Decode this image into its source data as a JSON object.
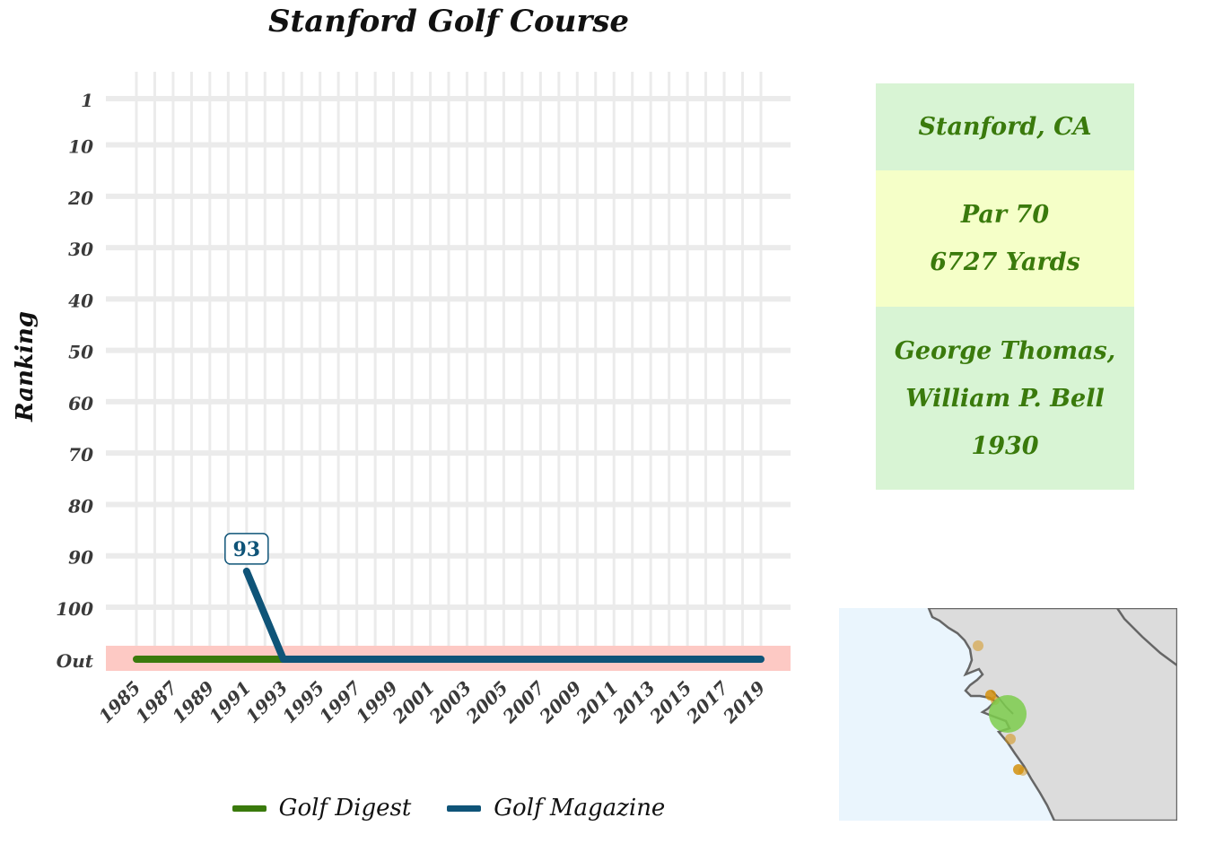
{
  "chart_data": {
    "type": "line",
    "title": "Stanford Golf Course",
    "ylabel": "Ranking",
    "xlabel": "",
    "x": [
      1985,
      1987,
      1989,
      1991,
      1993,
      1995,
      1997,
      1999,
      2001,
      2003,
      2005,
      2007,
      2009,
      2011,
      2013,
      2015,
      2017,
      2019
    ],
    "x_tick_labels": [
      "1985",
      "1987",
      "1989",
      "1991",
      "1993",
      "1995",
      "1997",
      "1999",
      "2001",
      "2003",
      "2005",
      "2007",
      "2009",
      "2011",
      "2013",
      "2015",
      "2017",
      "2019"
    ],
    "xlim": [
      1985,
      2019
    ],
    "y_tick_labels": [
      "1",
      "10",
      "20",
      "30",
      "40",
      "50",
      "60",
      "70",
      "80",
      "90",
      "100",
      "Out"
    ],
    "y_tick_values": [
      1,
      10,
      20,
      30,
      40,
      50,
      60,
      70,
      80,
      90,
      100,
      "Out"
    ],
    "y_reversed": true,
    "out_band_color": "#fdc9c4",
    "grid": true,
    "legend_position": "bottom",
    "series": [
      {
        "name": "Golf Digest",
        "color": "#3a7a0c",
        "points": [
          [
            1985,
            "Out"
          ],
          [
            1993,
            "Out"
          ]
        ]
      },
      {
        "name": "Golf Magazine",
        "color": "#0f5478",
        "points": [
          [
            1991,
            93
          ],
          [
            1993,
            "Out"
          ],
          [
            2019,
            "Out"
          ]
        ]
      }
    ],
    "annotations": [
      {
        "series": "Golf Magazine",
        "x": 1991,
        "y": 93,
        "text": "93"
      }
    ]
  },
  "info": {
    "location": "Stanford, CA",
    "par": "Par 70",
    "yards": "6727 Yards",
    "architect_line1": "George Thomas,",
    "architect_line2": "William P. Bell",
    "year": "1930"
  },
  "colors": {
    "text_green": "#3a7a0c",
    "location_bg": "#d8f4d4",
    "par_bg": "#f5ffc8",
    "map_water": "#eaf5fd",
    "map_land": "#dcdcdc",
    "map_highlight": "#7ccc4c",
    "map_other_courses": "#d4900e"
  }
}
